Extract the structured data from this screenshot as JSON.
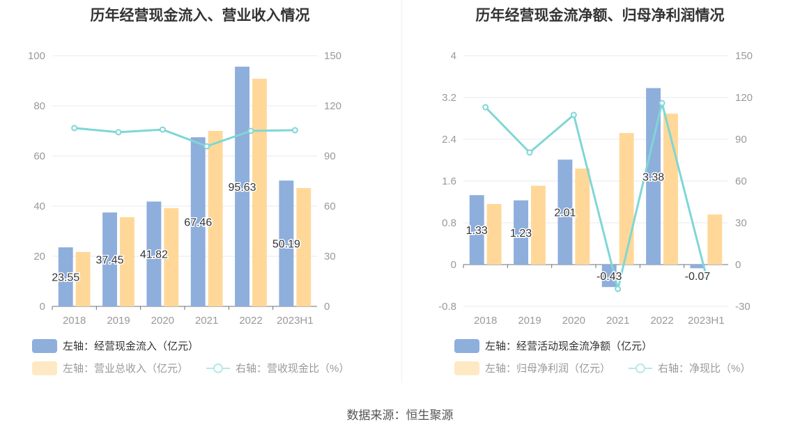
{
  "source": "数据来源：恒生聚源",
  "chart_data": [
    {
      "type": "bar",
      "title": "历年经营现金流入、营业收入情况",
      "categories": [
        "2018",
        "2019",
        "2020",
        "2021",
        "2022",
        "2023H1"
      ],
      "left_axis": {
        "min": 0,
        "max": 100,
        "ticks": [
          0,
          20,
          40,
          60,
          80,
          100
        ]
      },
      "right_axis": {
        "min": 0,
        "max": 150,
        "ticks": [
          0,
          30,
          60,
          90,
          120,
          150
        ]
      },
      "series": [
        {
          "name": "左轴：经营现金流入（亿元）",
          "kind": "bar",
          "axis": "left",
          "color": "#8eaedc",
          "values": [
            23.55,
            37.45,
            41.82,
            67.46,
            95.63,
            50.19
          ],
          "labels": [
            "23.55",
            "37.45",
            "41.82",
            "67.46",
            "95.63",
            "50.19"
          ]
        },
        {
          "name": "左轴：营业总收入（亿元）",
          "kind": "bar",
          "axis": "left",
          "color": "#ffd899",
          "values": [
            21.7,
            35.6,
            39.2,
            70.0,
            90.8,
            47.2
          ]
        },
        {
          "name": "右轴：营收现金比（%）",
          "kind": "line",
          "axis": "right",
          "color": "#7fd6d6",
          "values": [
            106.7,
            104.2,
            105.8,
            95.8,
            105.0,
            105.4
          ]
        }
      ]
    },
    {
      "type": "bar",
      "title": "历年经营现金流净额、归母净利润情况",
      "categories": [
        "2018",
        "2019",
        "2020",
        "2021",
        "2022",
        "2023H1"
      ],
      "left_axis": {
        "min": -0.8,
        "max": 4,
        "ticks": [
          "-0.8",
          "0",
          "0.8",
          "1.6",
          "2.4",
          "3.2",
          "4"
        ]
      },
      "right_axis": {
        "min": -30,
        "max": 150,
        "ticks": [
          -30,
          0,
          30,
          60,
          90,
          120,
          150
        ]
      },
      "series": [
        {
          "name": "左轴：经营活动现金流净额（亿元）",
          "kind": "bar",
          "axis": "left",
          "color": "#8eaedc",
          "values": [
            1.33,
            1.23,
            2.01,
            -0.43,
            3.38,
            -0.07
          ],
          "labels": [
            "1.33",
            "1.23",
            "2.01",
            "-0.43",
            "3.38",
            "-0.07"
          ]
        },
        {
          "name": "左轴：归母净利润（亿元）",
          "kind": "bar",
          "axis": "left",
          "color": "#ffd899",
          "values": [
            1.16,
            1.51,
            1.84,
            2.52,
            2.89,
            0.96
          ]
        },
        {
          "name": "右轴：净现比（%）",
          "kind": "line",
          "axis": "right",
          "color": "#7fd6d6",
          "values": [
            113,
            80.5,
            107.5,
            -17.5,
            116,
            -8
          ]
        }
      ]
    }
  ]
}
